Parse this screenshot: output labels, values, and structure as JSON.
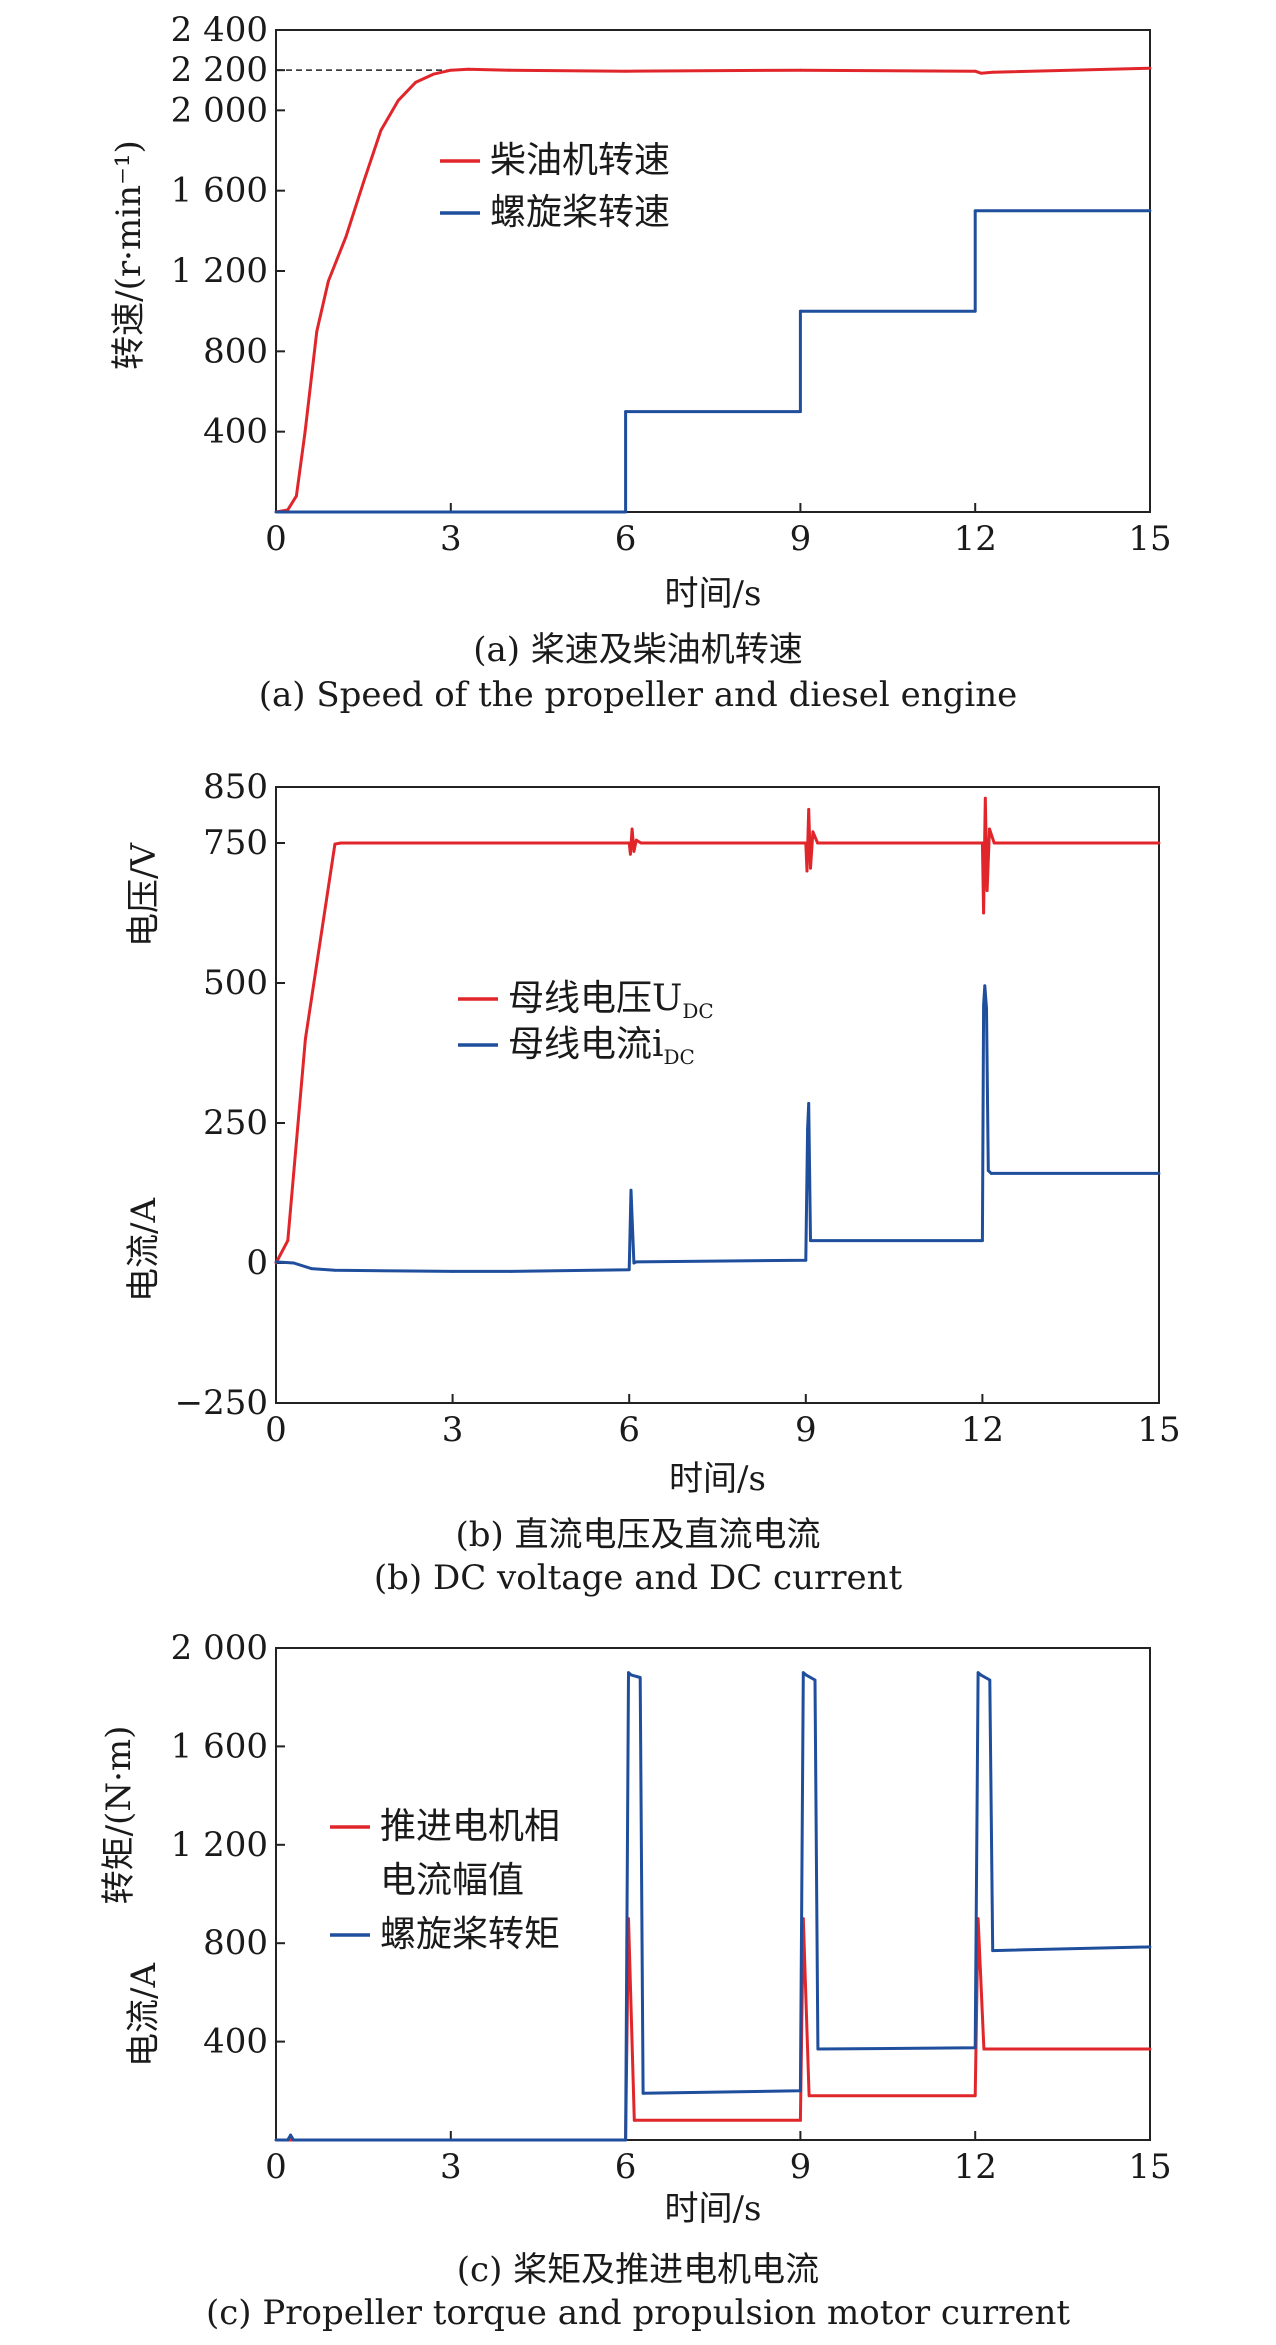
{
  "colors": {
    "red": "#e0262b",
    "blue": "#1f4e9c",
    "axis": "#222222"
  },
  "chart_data": [
    {
      "type": "line",
      "caption_cn": "(a) 桨速及柴油机转速",
      "caption_en": "(a) Speed of the propeller and diesel engine",
      "xlabel": "时间/s",
      "ylabel": "转速/(r·min⁻¹)",
      "xlim": [
        0,
        15
      ],
      "ylim": [
        0,
        2400
      ],
      "xticks": [
        0,
        3,
        6,
        9,
        12,
        15
      ],
      "xtick_labels": [
        "0",
        "3",
        "6",
        "9",
        "12",
        "15"
      ],
      "yticks": [
        400,
        800,
        1200,
        1600,
        2000,
        2200,
        2400
      ],
      "ytick_labels": [
        "400",
        "800",
        "1 200",
        "1 600",
        "2 000",
        "2 200",
        "2 400"
      ],
      "reference_line": {
        "y": 2200,
        "x_range": [
          0,
          3
        ]
      },
      "legend": "upper-center",
      "series": [
        {
          "name": "柴油机转速",
          "color": "red",
          "x": [
            0,
            0.2,
            0.35,
            0.5,
            0.7,
            0.9,
            1.2,
            1.5,
            1.8,
            2.1,
            2.4,
            2.7,
            3.0,
            3.3,
            4.0,
            6.0,
            9.0,
            12.0,
            12.1,
            12.3,
            15.0
          ],
          "y": [
            0,
            10,
            80,
            400,
            900,
            1150,
            1370,
            1640,
            1900,
            2050,
            2140,
            2180,
            2200,
            2205,
            2200,
            2195,
            2200,
            2195,
            2185,
            2190,
            2210
          ]
        },
        {
          "name": "螺旋桨转速",
          "color": "blue",
          "x": [
            0,
            6.0,
            6.0,
            9.0,
            9.0,
            12.0,
            12.0,
            15.0
          ],
          "y": [
            0,
            0,
            500,
            500,
            1000,
            1000,
            1500,
            1500
          ]
        }
      ]
    },
    {
      "type": "line",
      "caption_cn": "(b) 直流电压及直流电流",
      "caption_en": "(b) DC voltage and DC current",
      "xlabel": "时间/s",
      "ylabel_top": "电压/V",
      "ylabel_bottom": "电流/A",
      "xlim": [
        0,
        15
      ],
      "ylim": [
        -250,
        850
      ],
      "xticks": [
        0,
        3,
        6,
        9,
        12,
        15
      ],
      "xtick_labels": [
        "0",
        "3",
        "6",
        "9",
        "12",
        "15"
      ],
      "yticks": [
        -250,
        0,
        250,
        500,
        750,
        850
      ],
      "ytick_labels": [
        "−250",
        "0",
        "250",
        "500",
        "750",
        "850"
      ],
      "legend": "center",
      "series": [
        {
          "name": "母线电压U",
          "name_sub": "DC",
          "color": "red",
          "x": [
            0,
            0.2,
            0.5,
            1.0,
            1.1,
            6.0,
            6.02,
            6.05,
            6.08,
            6.12,
            6.2,
            9.0,
            9.02,
            9.05,
            9.08,
            9.12,
            9.2,
            12.0,
            12.02,
            12.05,
            12.08,
            12.12,
            12.2,
            15.0
          ],
          "y": [
            0,
            40,
            400,
            748,
            750,
            750,
            730,
            775,
            735,
            755,
            750,
            750,
            700,
            810,
            705,
            770,
            750,
            750,
            625,
            830,
            665,
            775,
            750,
            750
          ]
        },
        {
          "name": "母线电流i",
          "name_sub": "DC",
          "color": "blue",
          "x": [
            0,
            0.3,
            0.6,
            1.0,
            3.0,
            4.0,
            6.0,
            6.03,
            6.08,
            6.12,
            9.0,
            9.03,
            9.05,
            9.08,
            9.1,
            12.0,
            12.02,
            12.04,
            12.07,
            12.1,
            12.15,
            15.0
          ],
          "y": [
            2,
            0,
            -10,
            -13,
            -15,
            -15,
            -12,
            130,
            0,
            2,
            5,
            240,
            285,
            40,
            40,
            40,
            460,
            495,
            455,
            165,
            160,
            160
          ]
        }
      ]
    },
    {
      "type": "line",
      "caption_cn": "(c) 桨矩及推进电机电流",
      "caption_en": "(c) Propeller torque and propulsion motor current",
      "xlabel": "时间/s",
      "ylabel_top": "转矩/(N·m)",
      "ylabel_bottom": "电流/A",
      "xlim": [
        0,
        15
      ],
      "ylim": [
        0,
        2000
      ],
      "xticks": [
        0,
        3,
        6,
        9,
        12,
        15
      ],
      "xtick_labels": [
        "0",
        "3",
        "6",
        "9",
        "12",
        "15"
      ],
      "yticks": [
        400,
        800,
        1200,
        1600,
        2000
      ],
      "ytick_labels": [
        "400",
        "800",
        "1 200",
        "1 600",
        "2 000"
      ],
      "legend": "center-left",
      "series": [
        {
          "name": "推进电机相电流幅值",
          "legend_lines": [
            "推进电机相",
            "电流幅值"
          ],
          "color": "red",
          "x": [
            0,
            6.0,
            6.05,
            6.15,
            9.0,
            9.05,
            9.15,
            12.0,
            12.05,
            12.15,
            15.0
          ],
          "y": [
            0,
            0,
            900,
            80,
            80,
            900,
            180,
            180,
            900,
            370,
            370
          ]
        },
        {
          "name": "螺旋桨转矩",
          "legend_lines": [
            "螺旋桨转矩"
          ],
          "color": "blue",
          "x": [
            0,
            0.2,
            0.25,
            0.3,
            6.0,
            6.05,
            6.1,
            6.25,
            6.3,
            9.0,
            9.05,
            9.1,
            9.25,
            9.3,
            12.0,
            12.05,
            12.1,
            12.25,
            12.3,
            15.0
          ],
          "y": [
            0,
            0,
            20,
            0,
            0,
            1900,
            1890,
            1880,
            190,
            200,
            1900,
            1890,
            1870,
            370,
            375,
            1900,
            1890,
            1870,
            770,
            785
          ]
        }
      ]
    }
  ]
}
